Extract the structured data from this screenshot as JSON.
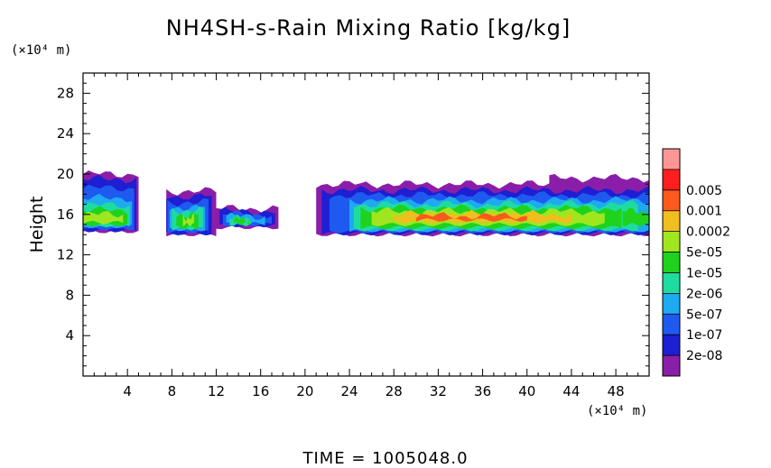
{
  "chart_data": {
    "type": "heatmap",
    "title": "NH4SH-s-Rain Mixing Ratio [kg/kg]",
    "ylabel": "Height",
    "y_unit": "(×10⁴ m)",
    "x_unit": "(×10⁴ m)",
    "xlim": [
      0,
      51
    ],
    "ylim": [
      0,
      30
    ],
    "x_ticks": [
      4,
      8,
      12,
      16,
      20,
      24,
      28,
      32,
      36,
      40,
      44,
      48
    ],
    "y_ticks": [
      4,
      8,
      12,
      16,
      20,
      24,
      28
    ],
    "colorbar": {
      "levels": [
        "2e-08",
        "1e-07",
        "5e-07",
        "2e-06",
        "1e-05",
        "5e-05",
        "0.0002",
        "0.001",
        "0.005"
      ],
      "colors": [
        "#8b1ea8",
        "#1e1ed2",
        "#1e5af0",
        "#1eaaf0",
        "#1edca0",
        "#1ed21e",
        "#a0e61e",
        "#f0be1e",
        "#ff5a1e",
        "#ff1e1e",
        "#ff9696"
      ]
    },
    "bands": [
      {
        "name": "purple-fringe",
        "color": "#8b1ea8",
        "regions": [
          [
            0,
            18.5,
            20.0,
            14.3
          ],
          [
            7.5,
            12.5,
            18.0,
            14.2
          ],
          [
            12.0,
            17.5,
            16.6,
            14.8
          ],
          [
            25.0,
            51.0,
            19.0,
            14.0
          ]
        ]
      }
    ],
    "footer": "TIME = 1005048.0"
  }
}
